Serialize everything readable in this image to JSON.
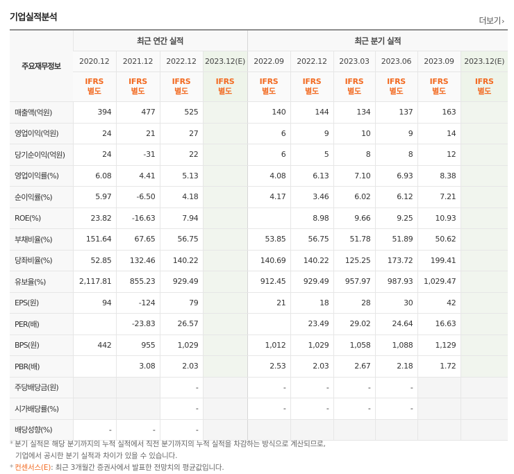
{
  "title": "기업실적분석",
  "more_label": "더보기",
  "header": {
    "label_column": "주요재무정보",
    "annual_group": "최근 연간 실적",
    "quarter_group": "최근 분기 실적",
    "annual_periods": [
      "2020.12",
      "2021.12",
      "2022.12",
      "2023.12(E)"
    ],
    "quarter_periods": [
      "2022.09",
      "2022.12",
      "2023.03",
      "2023.06",
      "2023.09",
      "2023.12(E)"
    ],
    "ifrs": "IFRS",
    "basis": "별도"
  },
  "rows": [
    {
      "label": "매출액(억원)",
      "annual": [
        "394",
        "477",
        "525",
        ""
      ],
      "quarter": [
        "140",
        "144",
        "134",
        "137",
        "163",
        ""
      ]
    },
    {
      "label": "영업이익(억원)",
      "annual": [
        "24",
        "21",
        "27",
        ""
      ],
      "quarter": [
        "6",
        "9",
        "10",
        "9",
        "14",
        ""
      ]
    },
    {
      "label": "당기순이익(억원)",
      "annual": [
        "24",
        "-31",
        "22",
        ""
      ],
      "quarter": [
        "6",
        "5",
        "8",
        "8",
        "12",
        ""
      ]
    },
    {
      "label": "영업이익률(%)",
      "annual": [
        "6.08",
        "4.41",
        "5.13",
        ""
      ],
      "quarter": [
        "4.08",
        "6.13",
        "7.10",
        "6.93",
        "8.38",
        ""
      ]
    },
    {
      "label": "순이익률(%)",
      "annual": [
        "5.97",
        "-6.50",
        "4.18",
        ""
      ],
      "quarter": [
        "4.17",
        "3.46",
        "6.02",
        "6.12",
        "7.21",
        ""
      ]
    },
    {
      "label": "ROE(%)",
      "annual": [
        "23.82",
        "-16.63",
        "7.94",
        ""
      ],
      "quarter": [
        "",
        "8.98",
        "9.66",
        "9.25",
        "10.93",
        ""
      ]
    },
    {
      "label": "부채비율(%)",
      "annual": [
        "151.64",
        "67.65",
        "56.75",
        ""
      ],
      "quarter": [
        "53.85",
        "56.75",
        "51.78",
        "51.89",
        "50.62",
        ""
      ]
    },
    {
      "label": "당좌비율(%)",
      "annual": [
        "52.85",
        "132.46",
        "140.22",
        ""
      ],
      "quarter": [
        "140.69",
        "140.22",
        "125.25",
        "173.72",
        "199.41",
        ""
      ]
    },
    {
      "label": "유보율(%)",
      "annual": [
        "2,117.81",
        "855.23",
        "929.49",
        ""
      ],
      "quarter": [
        "912.45",
        "929.49",
        "957.97",
        "987.93",
        "1,029.47",
        ""
      ]
    },
    {
      "label": "EPS(원)",
      "annual": [
        "94",
        "-124",
        "79",
        ""
      ],
      "quarter": [
        "21",
        "18",
        "28",
        "30",
        "42",
        ""
      ]
    },
    {
      "label": "PER(배)",
      "annual": [
        "",
        "-23.83",
        "26.57",
        ""
      ],
      "quarter": [
        "",
        "23.49",
        "29.02",
        "24.64",
        "16.63",
        ""
      ]
    },
    {
      "label": "BPS(원)",
      "annual": [
        "442",
        "955",
        "1,029",
        ""
      ],
      "quarter": [
        "1,012",
        "1,029",
        "1,058",
        "1,088",
        "1,129",
        ""
      ]
    },
    {
      "label": "PBR(배)",
      "annual": [
        "",
        "3.08",
        "2.03",
        ""
      ],
      "quarter": [
        "2.53",
        "2.03",
        "2.67",
        "2.18",
        "1.72",
        ""
      ]
    },
    {
      "label": "주당배당금(원)",
      "annual": [
        "",
        "",
        "-",
        ""
      ],
      "quarter": [
        "-",
        "-",
        "-",
        "-",
        "",
        ""
      ]
    },
    {
      "label": "시가배당률(%)",
      "annual": [
        "",
        "",
        "-",
        ""
      ],
      "quarter": [
        "-",
        "-",
        "-",
        "-",
        "",
        ""
      ]
    },
    {
      "label": "배당성향(%)",
      "annual": [
        "-",
        "-",
        "-",
        ""
      ],
      "quarter": [
        "",
        "",
        "",
        "",
        "",
        ""
      ]
    }
  ],
  "footnotes": {
    "line1": "분기 실적은 해당 분기까지의 누적 실적에서 직전 분기까지의 누적 실적을 차감하는 방식으로 계산되므로,",
    "line2": "기업에서 공시한 분기 실적과 차이가 있을 수 있습니다.",
    "line3_em": "컨센서스(E)",
    "line3_rest": ": 최근 3개월간 증권사에서 발표한 전망치의 평균값입니다."
  }
}
